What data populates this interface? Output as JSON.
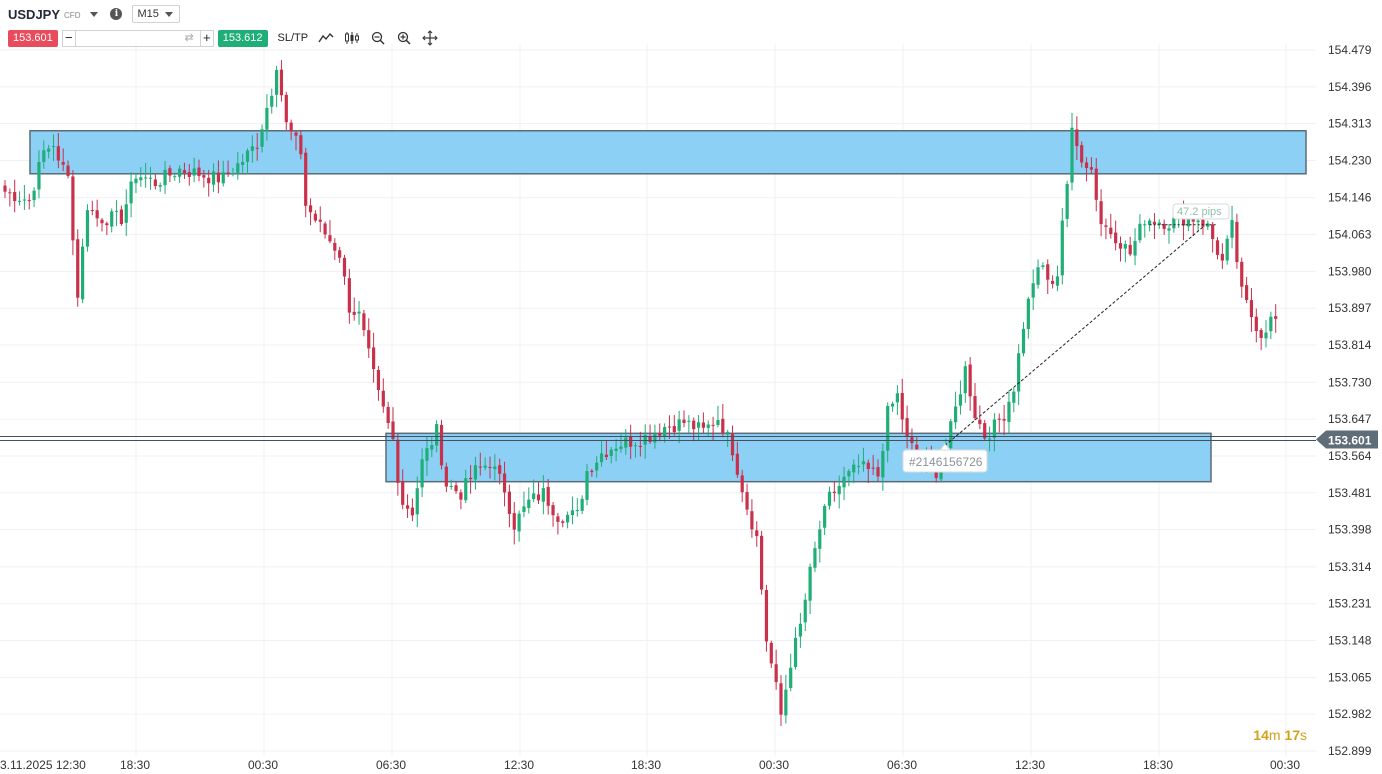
{
  "header": {
    "symbol": "USDJPY",
    "instrument_type": "CFD",
    "timeframe": "M15"
  },
  "trade": {
    "sell_price": "153.601",
    "buy_price": "153.612",
    "minus_label": "−",
    "plus_label": "+",
    "quantity_value": "",
    "sltp_label": "SL/TP"
  },
  "toolbar": {
    "icons": [
      "line-chart-icon",
      "candles-icon",
      "zoom-out-icon",
      "zoom-in-icon",
      "crosshair-icon"
    ]
  },
  "colors": {
    "bull": "#1fae77",
    "bear": "#c9304a",
    "zone_fill": "#87cdf5",
    "zone_border": "#5b6b78",
    "price_line": "#44515c",
    "current_price_bg": "#5e6d78",
    "timer": "#d4a017"
  },
  "chart_data": {
    "type": "candlestick",
    "price_axis": {
      "ticks": [
        "154.479",
        "154.396",
        "154.313",
        "154.230",
        "154.146",
        "154.063",
        "153.980",
        "153.897",
        "153.814",
        "153.730",
        "153.647",
        "153.564",
        "153.481",
        "153.398",
        "153.314",
        "153.231",
        "153.148",
        "153.065",
        "152.982",
        "152.899"
      ],
      "range": [
        152.88,
        154.5
      ],
      "current_price": "153.601"
    },
    "time_axis": {
      "labels": [
        "3.11.2025 12:30",
        "18:30",
        "00:30",
        "06:30",
        "12:30",
        "18:30",
        "00:30",
        "06:30",
        "12:30",
        "18:30",
        "00:30"
      ]
    },
    "zones": [
      {
        "high": 154.297,
        "low": 154.2
      },
      {
        "high": 153.615,
        "low": 153.506
      }
    ],
    "annotations": {
      "order_id": "#2146156726",
      "measure_label": "47.2 pips"
    },
    "timer": {
      "minutes": "14",
      "m": "m",
      "seconds": "17",
      "s": "s"
    },
    "anchors": [
      [
        0,
        154.16
      ],
      [
        5,
        154.14
      ],
      [
        8,
        154.25
      ],
      [
        10,
        154.27
      ],
      [
        11,
        154.22
      ],
      [
        13,
        154.21
      ],
      [
        14,
        154.05
      ],
      [
        15,
        153.93
      ],
      [
        17,
        154.13
      ],
      [
        19,
        154.1
      ],
      [
        24,
        154.1
      ],
      [
        27,
        154.2
      ],
      [
        31,
        154.18
      ],
      [
        36,
        154.21
      ],
      [
        40,
        154.2
      ],
      [
        43,
        154.19
      ],
      [
        45,
        154.19
      ],
      [
        49,
        154.23
      ],
      [
        52,
        154.27
      ],
      [
        55,
        154.39
      ],
      [
        56,
        154.45
      ],
      [
        58,
        154.31
      ],
      [
        61,
        154.25
      ],
      [
        62,
        154.13
      ],
      [
        65,
        154.08
      ],
      [
        69,
        154.02
      ],
      [
        71,
        153.9
      ],
      [
        73,
        153.88
      ],
      [
        75,
        153.79
      ],
      [
        77,
        153.7
      ],
      [
        80,
        153.6
      ],
      [
        81,
        153.52
      ],
      [
        82,
        153.46
      ],
      [
        84,
        153.44
      ],
      [
        86,
        153.55
      ],
      [
        89,
        153.62
      ],
      [
        91,
        153.5
      ],
      [
        94,
        153.48
      ],
      [
        97,
        153.53
      ],
      [
        100,
        153.55
      ],
      [
        103,
        153.49
      ],
      [
        105,
        153.41
      ],
      [
        108,
        153.46
      ],
      [
        111,
        153.48
      ],
      [
        114,
        153.43
      ],
      [
        118,
        153.43
      ],
      [
        120,
        153.53
      ],
      [
        123,
        153.57
      ],
      [
        126,
        153.59
      ],
      [
        130,
        153.6
      ],
      [
        133,
        153.61
      ],
      [
        136,
        153.63
      ],
      [
        140,
        153.64
      ],
      [
        144,
        153.62
      ],
      [
        147,
        153.65
      ],
      [
        148,
        153.63
      ],
      [
        150,
        153.58
      ],
      [
        153,
        153.45
      ],
      [
        155,
        153.38
      ],
      [
        157,
        153.15
      ],
      [
        159,
        153.04
      ],
      [
        160,
        152.98
      ],
      [
        162,
        153.1
      ],
      [
        164,
        153.18
      ],
      [
        166,
        153.3
      ],
      [
        168,
        153.4
      ],
      [
        170,
        153.47
      ],
      [
        173,
        153.51
      ],
      [
        176,
        153.54
      ],
      [
        180,
        153.52
      ],
      [
        182,
        153.66
      ],
      [
        184,
        153.7
      ],
      [
        186,
        153.6
      ],
      [
        189,
        153.55
      ],
      [
        192,
        153.53
      ],
      [
        194,
        153.58
      ],
      [
        196,
        153.67
      ],
      [
        198,
        153.76
      ],
      [
        200,
        153.66
      ],
      [
        202,
        153.61
      ],
      [
        204,
        153.63
      ],
      [
        206,
        153.66
      ],
      [
        208,
        153.72
      ],
      [
        210,
        153.86
      ],
      [
        212,
        153.96
      ],
      [
        214,
        153.99
      ],
      [
        216,
        153.94
      ],
      [
        217,
        153.98
      ],
      [
        218,
        154.1
      ],
      [
        219,
        154.18
      ],
      [
        220,
        154.29
      ],
      [
        221,
        154.26
      ],
      [
        222,
        154.24
      ],
      [
        224,
        154.21
      ],
      [
        226,
        154.09
      ],
      [
        229,
        154.06
      ],
      [
        232,
        154.02
      ],
      [
        235,
        154.1
      ],
      [
        240,
        154.09
      ],
      [
        243,
        154.1
      ],
      [
        246,
        154.1
      ],
      [
        248,
        154.08
      ],
      [
        251,
        154.0
      ],
      [
        253,
        154.08
      ],
      [
        255,
        153.93
      ],
      [
        257,
        153.88
      ],
      [
        259,
        153.84
      ],
      [
        261,
        153.87
      ]
    ]
  }
}
